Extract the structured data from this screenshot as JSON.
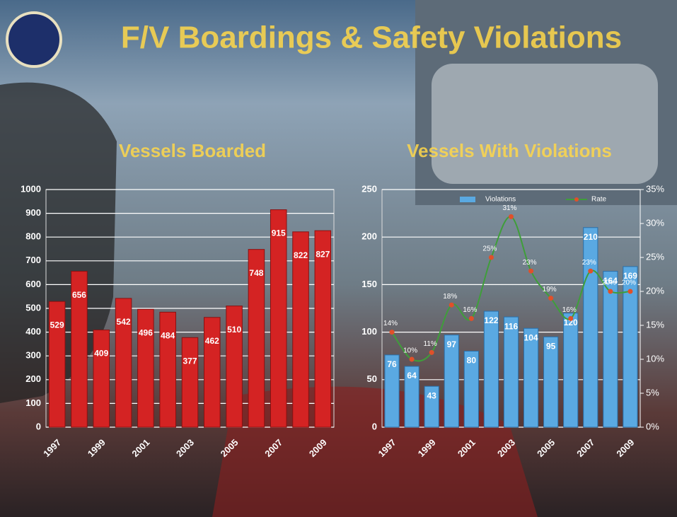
{
  "title": "F/V Boardings & Safety Violations",
  "chart_data": [
    {
      "type": "bar",
      "title": "Vessels Boarded",
      "categories": [
        "1997",
        null,
        "1999",
        null,
        "2001",
        null,
        "2003",
        null,
        "2005",
        null,
        "2007",
        null,
        "2009"
      ],
      "values": [
        529,
        656,
        409,
        542,
        496,
        484,
        377,
        462,
        510,
        748,
        915,
        822,
        827
      ],
      "color": "#d42323",
      "ylim": [
        0,
        1000
      ],
      "yticks": [
        0,
        100,
        200,
        300,
        400,
        500,
        600,
        700,
        800,
        900,
        1000
      ],
      "grid": true
    },
    {
      "type": "bar-line",
      "title": "Vessels With Violations",
      "categories": [
        "1997",
        null,
        "1999",
        null,
        "2001",
        null,
        "2003",
        null,
        "2005",
        null,
        "2007",
        null,
        "2009"
      ],
      "series": [
        {
          "name": "Violations",
          "color": "#5aa9e2",
          "values": [
            76,
            64,
            43,
            97,
            80,
            122,
            116,
            104,
            95,
            120,
            210,
            164,
            169
          ]
        },
        {
          "name": "Rate",
          "color": "#3f9e3a",
          "axis": "y2",
          "values": [
            14,
            10,
            11,
            18,
            16,
            25,
            31,
            23,
            19,
            16,
            23,
            20,
            20
          ],
          "value_labels": [
            "14%",
            "10%",
            "11%",
            "18%",
            "16%",
            "25%",
            "31%",
            "23%",
            "19%",
            "16%",
            "23%",
            "20%",
            "20%"
          ]
        }
      ],
      "ylim": [
        0,
        250
      ],
      "yticks": [
        0,
        50,
        100,
        150,
        200,
        250
      ],
      "y2lim": [
        0,
        35
      ],
      "y2ticks": [
        {
          "value": 0,
          "label": "0%"
        },
        {
          "value": 5,
          "label": "5%"
        },
        {
          "value": 10,
          "label": "10%"
        },
        {
          "value": 15,
          "label": "15%"
        },
        {
          "value": 20,
          "label": "20%"
        },
        {
          "value": 25,
          "label": "25%"
        },
        {
          "value": 30,
          "label": "30%"
        },
        {
          "value": 35,
          "label": "35%"
        }
      ],
      "grid": true,
      "legend": "top"
    }
  ]
}
